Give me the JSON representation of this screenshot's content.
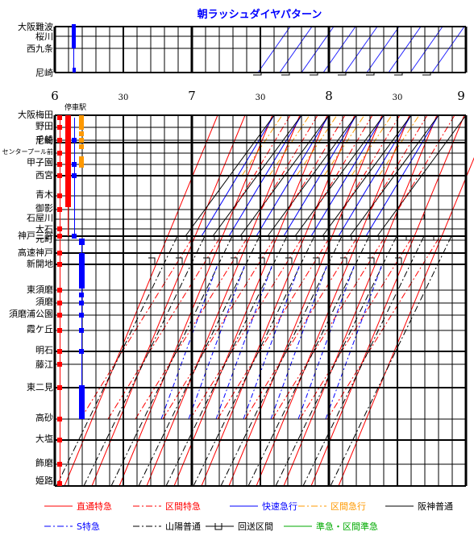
{
  "title": "朝ラッシュダイヤパターン",
  "stop_label": "停車駅",
  "time_axis": {
    "hours": [
      "6",
      "7",
      "8",
      "9"
    ],
    "half_labels": [
      "30",
      "30",
      "30"
    ]
  },
  "upper_stations": [
    "大阪難波",
    "桜川",
    "西九条",
    "尼崎"
  ],
  "lower_stations": [
    {
      "name": "大阪梅田",
      "small": false
    },
    {
      "name": "野田",
      "small": false
    },
    {
      "name": "千船",
      "small": false
    },
    {
      "name": "尼崎",
      "small": false
    },
    {
      "name": "センタープール前",
      "small": true
    },
    {
      "name": "甲子園",
      "small": false
    },
    {
      "name": "西宮",
      "small": false
    },
    {
      "name": "青木",
      "small": false
    },
    {
      "name": "御影",
      "small": false
    },
    {
      "name": "石屋川",
      "small": false
    },
    {
      "name": "大石",
      "small": false
    },
    {
      "name": "神戸三宮",
      "small": false
    },
    {
      "name": "元町",
      "small": false
    },
    {
      "name": "高速神戸",
      "small": false
    },
    {
      "name": "新開地",
      "small": false
    },
    {
      "name": "東須磨",
      "small": false
    },
    {
      "name": "須磨",
      "small": false
    },
    {
      "name": "須磨浦公園",
      "small": false
    },
    {
      "name": "霞ケ丘",
      "small": false
    },
    {
      "name": "明石",
      "small": false
    },
    {
      "name": "藤江",
      "small": false
    },
    {
      "name": "東二見",
      "small": false
    },
    {
      "name": "高砂",
      "small": false
    },
    {
      "name": "大塩",
      "small": false
    },
    {
      "name": "飾磨",
      "small": false
    },
    {
      "name": "姫路",
      "small": false
    }
  ],
  "legend": [
    {
      "label": "直通特急",
      "color": "#ff0000",
      "style": "solid"
    },
    {
      "label": "区間特急",
      "color": "#ff0000",
      "style": "dashdot"
    },
    {
      "label": "快速急行",
      "color": "#0000ff",
      "style": "solid"
    },
    {
      "label": "区間急行",
      "color": "#ff9900",
      "style": "dashdot"
    },
    {
      "label": "阪神普通",
      "color": "#000000",
      "style": "solid"
    },
    {
      "label": "S特急",
      "color": "#0000ff",
      "style": "dashdot"
    },
    {
      "label": "山陽普通",
      "color": "#000000",
      "style": "dashdot"
    },
    {
      "label": "回送区間",
      "color": "#000000",
      "style": "deadhead"
    },
    {
      "label": "準急・区間準急",
      "color": "#00aa00",
      "style": "solid"
    }
  ]
}
